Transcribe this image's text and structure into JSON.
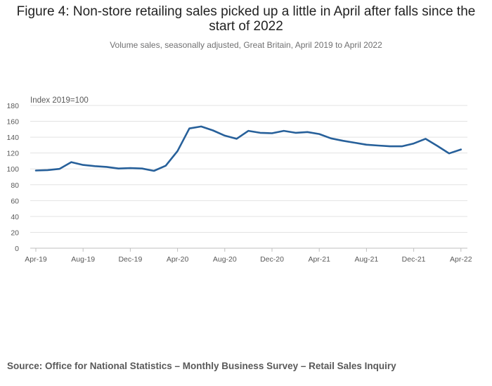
{
  "chart_data": {
    "type": "line",
    "title": "Figure 4: Non-store retailing sales picked up a little in April after falls since the start of 2022",
    "subtitle": "Volume sales, seasonally adjusted, Great Britain, April 2019 to April 2022",
    "ylabel": "Index 2019=100",
    "xlabel": "",
    "ylim": [
      0,
      180
    ],
    "yticks": [
      0,
      20,
      40,
      60,
      80,
      100,
      120,
      140,
      160,
      180
    ],
    "grid": true,
    "x": [
      "Apr-19",
      "May-19",
      "Jun-19",
      "Jul-19",
      "Aug-19",
      "Sep-19",
      "Oct-19",
      "Nov-19",
      "Dec-19",
      "Jan-20",
      "Feb-20",
      "Mar-20",
      "Apr-20",
      "May-20",
      "Jun-20",
      "Jul-20",
      "Aug-20",
      "Sep-20",
      "Oct-20",
      "Nov-20",
      "Dec-20",
      "Jan-21",
      "Feb-21",
      "Mar-21",
      "Apr-21",
      "May-21",
      "Jun-21",
      "Jul-21",
      "Aug-21",
      "Sep-21",
      "Oct-21",
      "Nov-21",
      "Dec-21",
      "Jan-22",
      "Feb-22",
      "Mar-22",
      "Apr-22"
    ],
    "xtick_labels": [
      "Apr-19",
      "Aug-19",
      "Dec-19",
      "Apr-20",
      "Aug-20",
      "Dec-20",
      "Apr-21",
      "Aug-21",
      "Dec-21",
      "Apr-22"
    ],
    "series": [
      {
        "color": "#27609a",
        "values": [
          98,
          98.5,
          100,
          108.5,
          105,
          103.5,
          102.5,
          100.5,
          101,
          100.5,
          97.5,
          104,
          122.5,
          151,
          153.5,
          148.5,
          142,
          138,
          148,
          145.5,
          145,
          148,
          145.5,
          146.5,
          144,
          138.5,
          135.5,
          133,
          130.5,
          129.5,
          128.5,
          128.5,
          132,
          138,
          129,
          119.5,
          124.5
        ]
      }
    ]
  },
  "source": "Source: Office for National Statistics – Monthly Business Survey – Retail Sales Inquiry"
}
